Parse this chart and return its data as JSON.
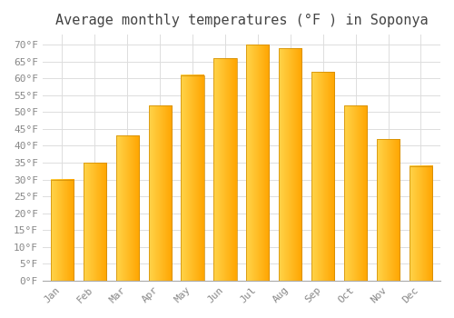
{
  "title": "Average monthly temperatures (°F ) in Soponya",
  "months": [
    "Jan",
    "Feb",
    "Mar",
    "Apr",
    "May",
    "Jun",
    "Jul",
    "Aug",
    "Sep",
    "Oct",
    "Nov",
    "Dec"
  ],
  "values": [
    30,
    35,
    43,
    52,
    61,
    66,
    70,
    69,
    62,
    52,
    42,
    34
  ],
  "bar_color_left": "#FFD44A",
  "bar_color_right": "#FFA500",
  "bar_edge_color": "#CC8800",
  "background_color": "#FFFFFF",
  "grid_color": "#DDDDDD",
  "ylim": [
    0,
    73
  ],
  "yticks": [
    0,
    5,
    10,
    15,
    20,
    25,
    30,
    35,
    40,
    45,
    50,
    55,
    60,
    65,
    70
  ],
  "tick_label_color": "#888888",
  "title_color": "#444444",
  "title_fontsize": 11,
  "axis_label_fontsize": 8,
  "font_family": "monospace"
}
